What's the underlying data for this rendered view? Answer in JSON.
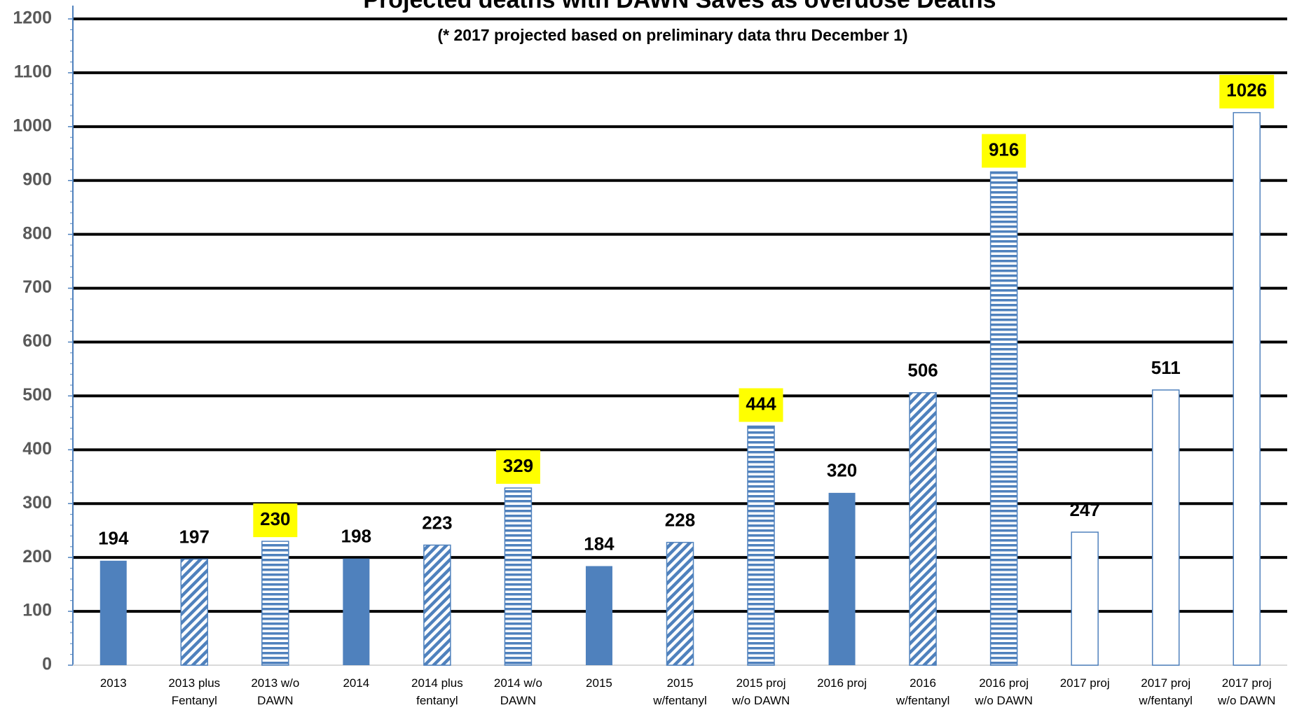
{
  "chart_data": {
    "type": "bar",
    "title": "Projected deaths with DAWN Saves as overdose Deaths",
    "subtitle": "(* 2017 projected based on preliminary data thru December 1)",
    "categories": [
      "2013",
      "2013 plus\nFentanyl",
      "2013 w/o\nDAWN",
      "2014",
      "2014 plus\nfentanyl",
      "2014 w/o\nDAWN",
      "2015",
      "2015\nw/fentanyl",
      "2015 proj\nw/o DAWN",
      "2016 proj",
      "2016\nw/fentanyl",
      "2016 proj\nw/o DAWN",
      "2017 proj",
      "2017 proj\nw/fentanyl",
      "2017 proj\nw/o DAWN"
    ],
    "values": [
      194,
      197,
      230,
      198,
      223,
      329,
      184,
      228,
      444,
      320,
      506,
      916,
      247,
      511,
      1026
    ],
    "patterns": [
      "solid",
      "diagonal",
      "horizontal",
      "solid",
      "diagonal",
      "horizontal",
      "solid",
      "diagonal",
      "horizontal",
      "solid",
      "diagonal",
      "horizontal",
      "hollow",
      "hollow",
      "hollow"
    ],
    "highlighted": [
      false,
      false,
      true,
      false,
      false,
      true,
      false,
      false,
      true,
      false,
      false,
      true,
      false,
      false,
      true
    ],
    "color": "#4f81bd",
    "highlight_color": "#ffff00",
    "ylim": [
      0,
      1200
    ],
    "yticks": [
      0,
      100,
      200,
      300,
      400,
      500,
      600,
      700,
      800,
      900,
      1000,
      1100,
      1200
    ],
    "grid": true
  }
}
